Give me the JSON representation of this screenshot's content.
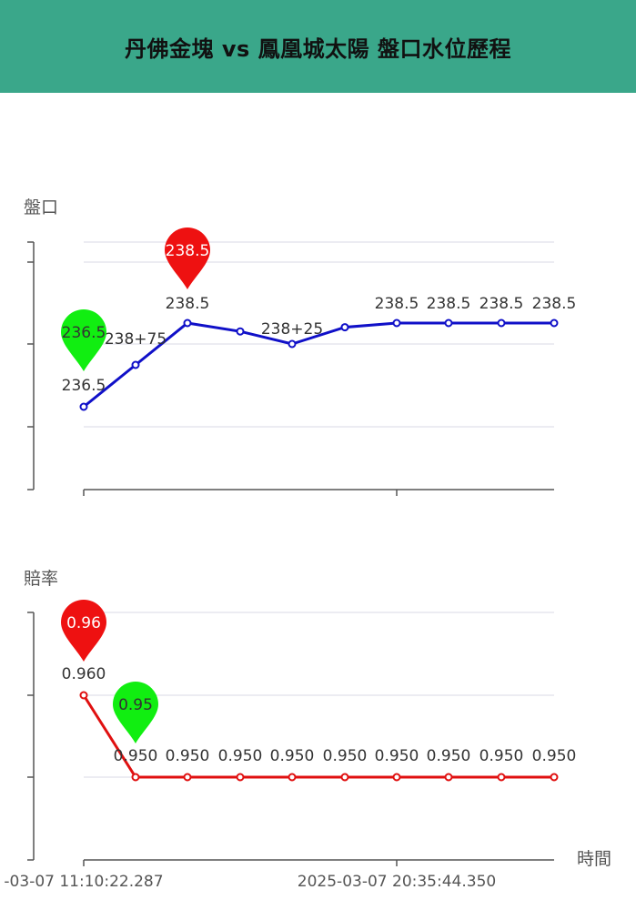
{
  "header": {
    "title": "丹佛金塊 vs 鳳凰城太陽 盤口水位歷程"
  },
  "colors": {
    "header_bg": "#3aa78a",
    "handicap_line": "#1010c8",
    "odds_line": "#e01010",
    "max_pin": "#ee1111",
    "min_pin": "#11ee11",
    "grid": "#e6e6ee",
    "axis": "#555555"
  },
  "chart_data": [
    {
      "type": "line",
      "ylabel": "盤口",
      "x_tick_labels": [],
      "series": [
        {
          "values": [
            236.5,
            237.5,
            238.5,
            238.3,
            238.0,
            238.4,
            238.5,
            238.5,
            238.5,
            238.5
          ],
          "point_labels": [
            "236.5",
            "238+75",
            "238.5",
            "",
            "238+25",
            "",
            "238.5",
            "238.5",
            "238.5",
            "238.5"
          ]
        }
      ],
      "markers": {
        "max": {
          "index": 2,
          "label": "238.5"
        },
        "min": {
          "index": 0,
          "label": "236.5"
        }
      }
    },
    {
      "type": "line",
      "ylabel": "賠率",
      "xlabel": "時間",
      "x_tick_labels": [
        "-03-07 11:10:22.287",
        "2025-03-07 20:35:44.350"
      ],
      "series": [
        {
          "values": [
            0.96,
            0.95,
            0.95,
            0.95,
            0.95,
            0.95,
            0.95,
            0.95,
            0.95,
            0.95
          ],
          "point_labels": [
            "0.960",
            "0.950",
            "0.950",
            "0.950",
            "0.950",
            "0.950",
            "0.950",
            "0.950",
            "0.950",
            "0.950"
          ]
        }
      ],
      "markers": {
        "max": {
          "index": 0,
          "label": "0.96"
        },
        "min": {
          "index": 1,
          "label": "0.95"
        }
      }
    }
  ]
}
